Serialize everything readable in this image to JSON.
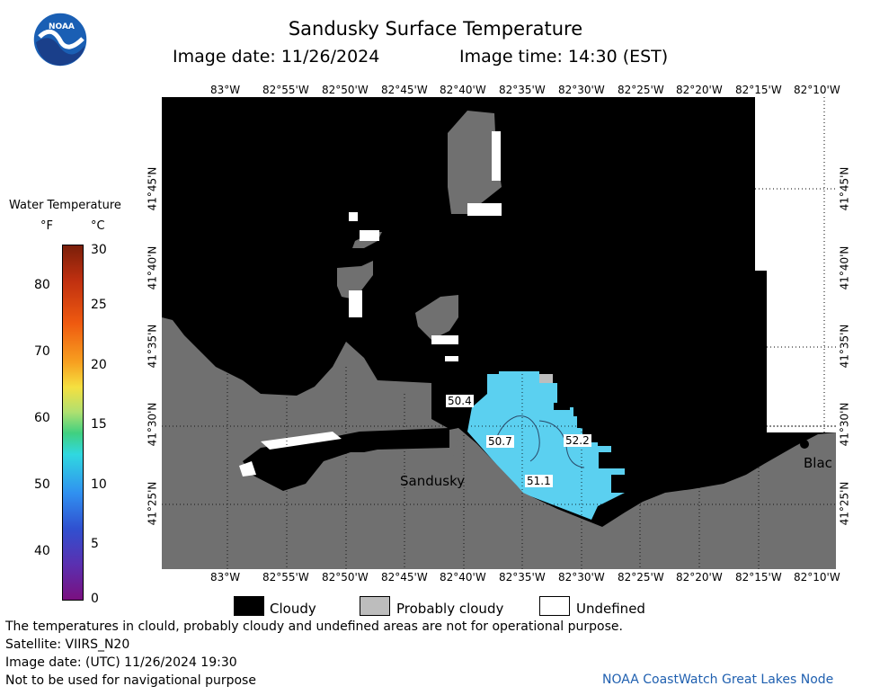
{
  "header": {
    "title": "Sandusky Surface Temperature",
    "image_date": "Image date: 11/26/2024",
    "image_time": "Image time: 14:30 (EST)"
  },
  "logo_text": "NOAA",
  "axes": {
    "lon_labels": [
      "83°W",
      "82°55'W",
      "82°50'W",
      "82°45'W",
      "82°40'W",
      "82°35'W",
      "82°30'W",
      "82°25'W",
      "82°20'W",
      "82°15'W",
      "82°10'W"
    ],
    "lat_labels": [
      "41°45'N",
      "41°40'N",
      "41°35'N",
      "41°30'N",
      "41°25'N"
    ]
  },
  "map": {
    "place_labels": [
      "Sandusky",
      "Blac"
    ],
    "temp_labels": [
      "50.4",
      "50.7",
      "52.2",
      "51.1"
    ]
  },
  "legend": {
    "title": "Water Temperature",
    "unit_f": "°F",
    "unit_c": "°C",
    "f_ticks": [
      "80",
      "70",
      "60",
      "50",
      "40"
    ],
    "c_ticks": [
      "30",
      "25",
      "20",
      "15",
      "10",
      "5",
      "0"
    ],
    "items": [
      {
        "label": "Cloudy",
        "color": "#000000"
      },
      {
        "label": "Probably cloudy",
        "color": "#bdbdbd"
      },
      {
        "label": "Undefined",
        "color": "#ffffff"
      }
    ]
  },
  "footer": {
    "line1": "The temperatures in clould, probably cloudy and undefined areas are not for operational purpose.",
    "line2": "Satellite: VIIRS_N20",
    "line3": "Image date: (UTC) 11/26/2024  19:30",
    "line4": "Not to be used for navigational purpose",
    "node": "NOAA CoastWatch Great Lakes Node"
  },
  "colors": {
    "land": "#707070",
    "cloud": "#000000",
    "water": "#5bd0f0",
    "probably_cloudy": "#bdbdbd"
  }
}
